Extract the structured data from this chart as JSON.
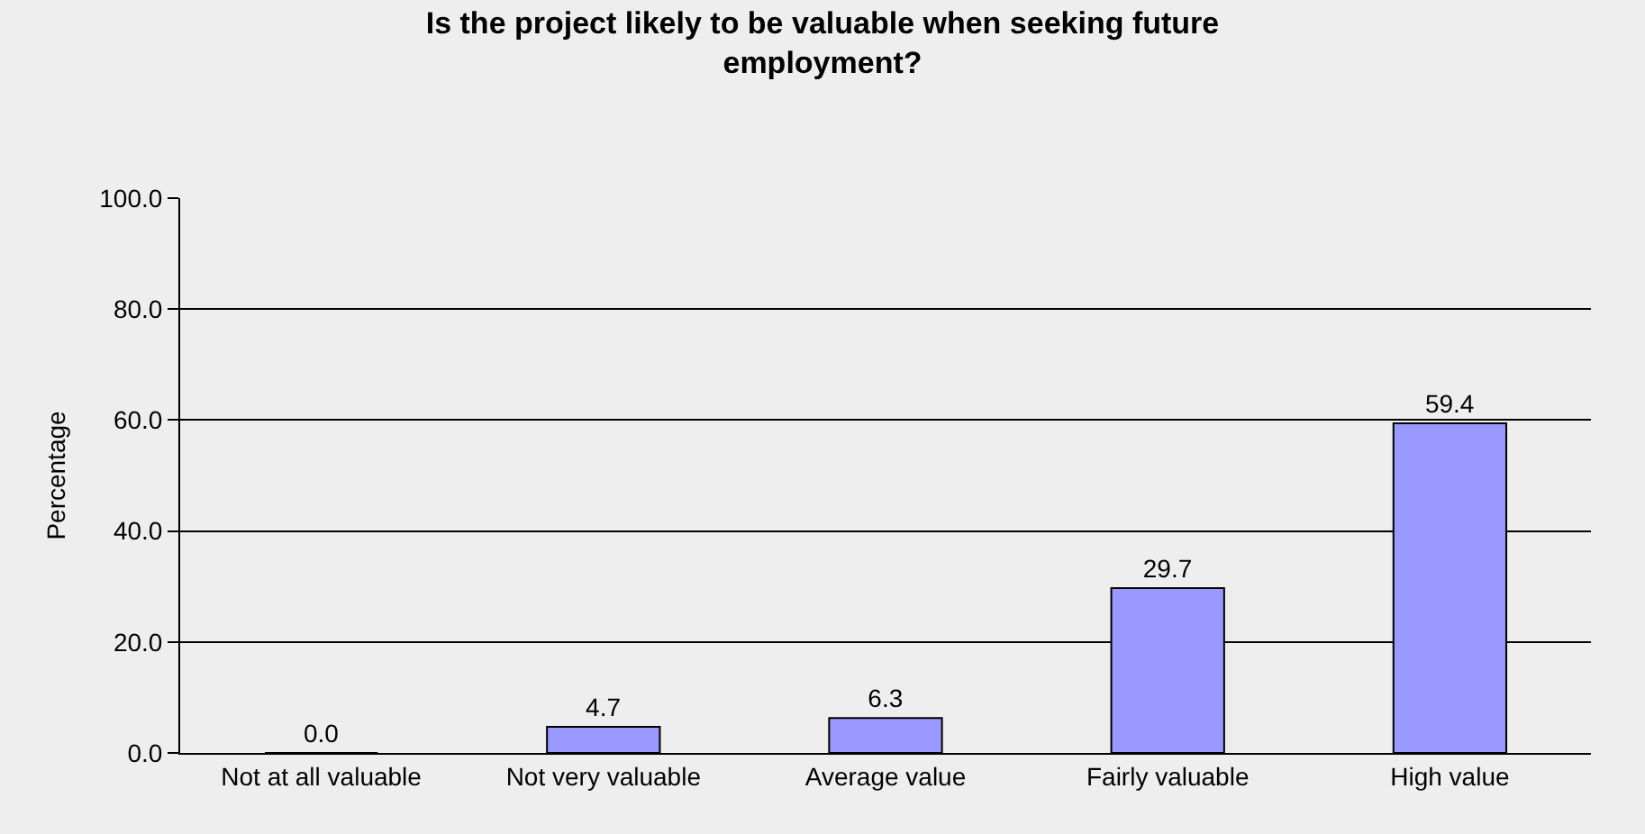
{
  "chart_data": {
    "type": "bar",
    "title": "Is the project likely to be valuable when seeking future employment?",
    "ylabel": "Percentage",
    "categories": [
      "Not at all valuable",
      "Not very valuable",
      "Average value",
      "Fairly valuable",
      "High value"
    ],
    "values": [
      0.0,
      4.7,
      6.3,
      29.7,
      59.4
    ],
    "color": "#9999ff",
    "value_labels": [
      "0.0",
      "4.7",
      "6.3",
      "29.7",
      "59.4"
    ],
    "ylim": [
      0,
      100
    ],
    "yticks": [
      {
        "value": 0,
        "label": "0.0"
      },
      {
        "value": 20,
        "label": "20.0"
      },
      {
        "value": 40,
        "label": "40.0"
      },
      {
        "value": 60,
        "label": "60.0"
      },
      {
        "value": 80,
        "label": "80.0"
      },
      {
        "value": 100,
        "label": "100.0"
      }
    ],
    "grid": "y",
    "legend": false
  }
}
